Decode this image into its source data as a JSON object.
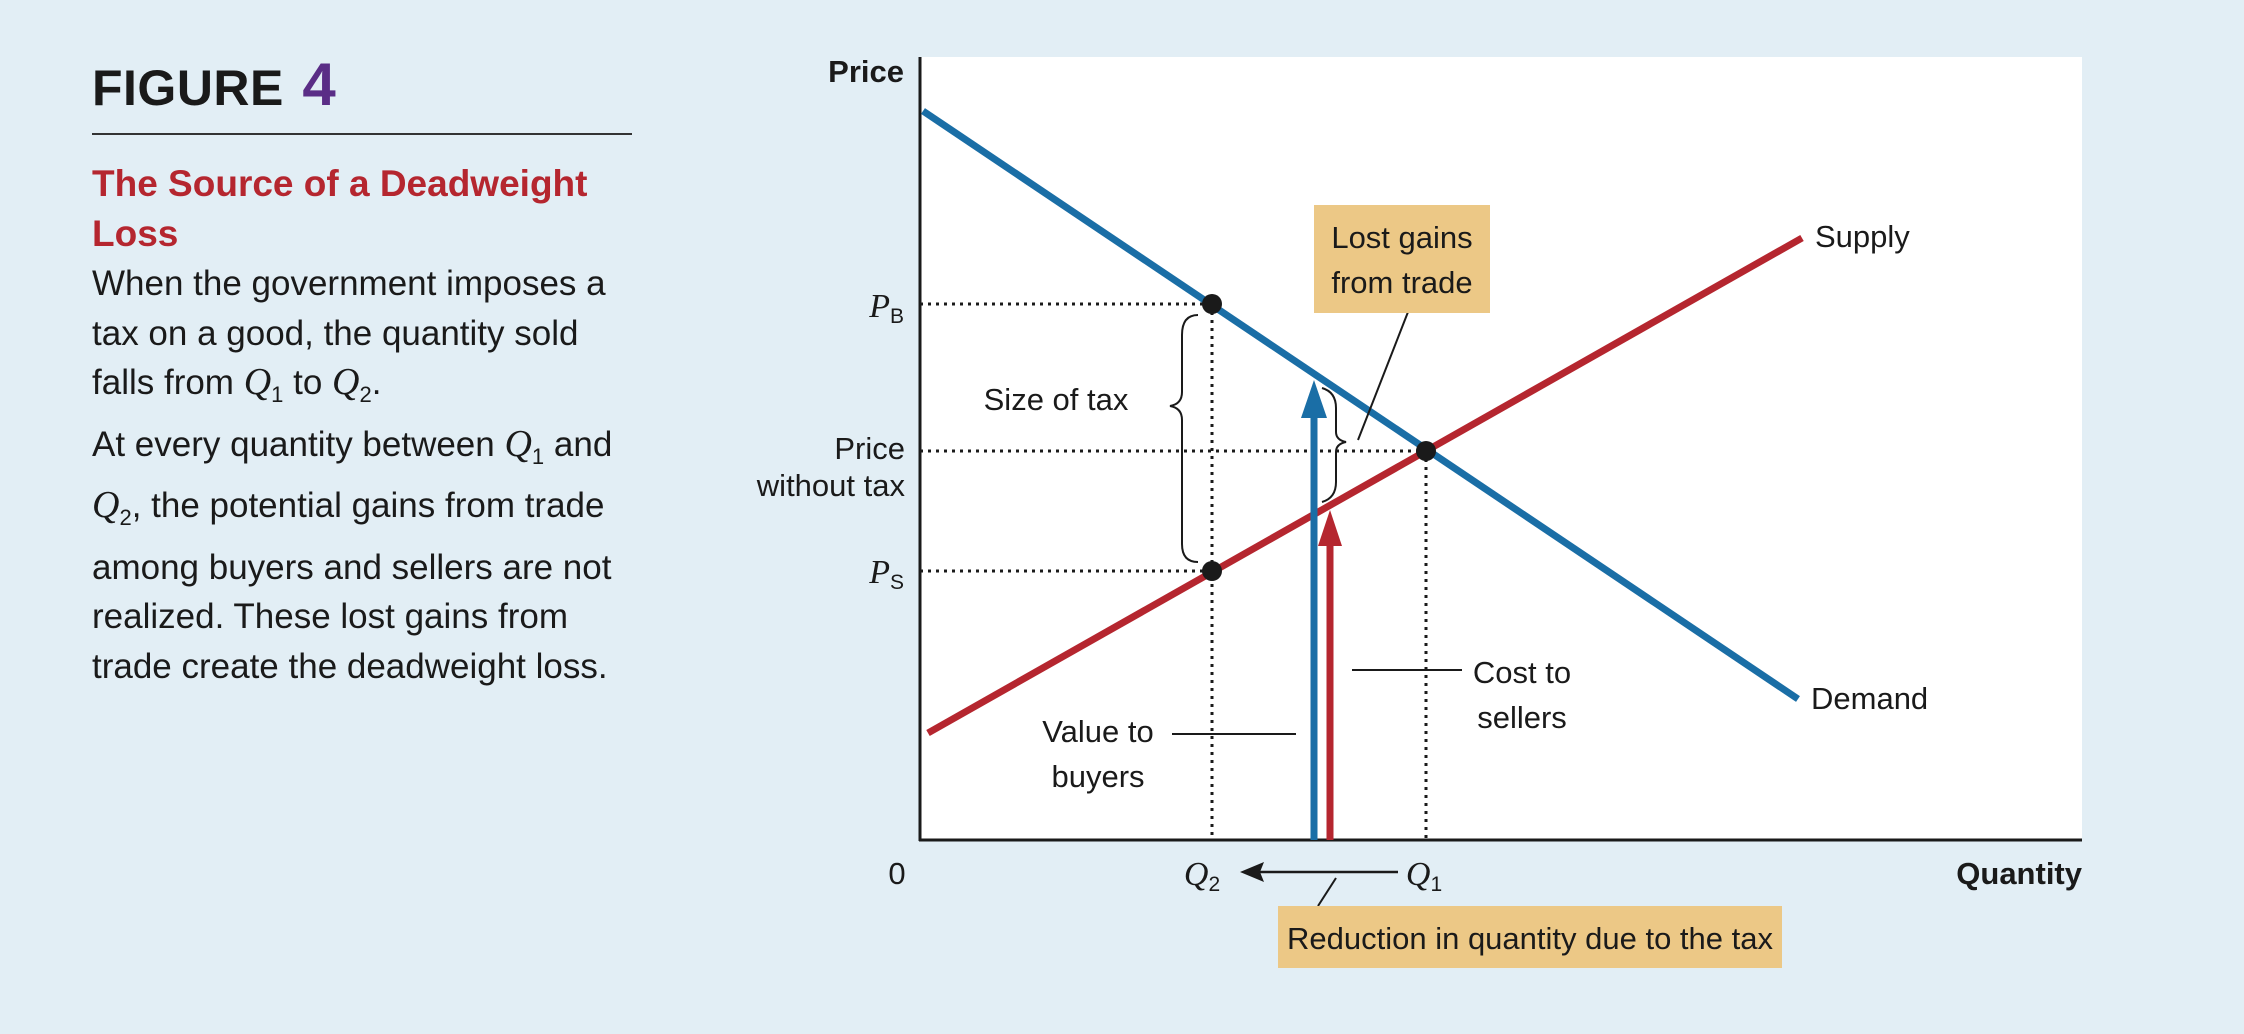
{
  "figure": {
    "label": "FIGURE",
    "number": "4",
    "heading": "The Source of a Deadweight Loss",
    "body": {
      "p1_a": "When the government imposes a tax on a good, the quantity sold falls from ",
      "q_sym": "Q",
      "q1_sub": "1",
      "to": " to ",
      "q2_sub": "2",
      "period": ".",
      "p2_a": "At every quantity between ",
      "and": " and ",
      "p2_b": ", the potential gains from trade among buyers and sellers are not realized. These lost gains from trade create the deadweight loss."
    }
  },
  "chart_data": {
    "type": "diagram",
    "ylabel": "Price",
    "xlabel": "Quantity",
    "origin_label": "0",
    "curves": [
      {
        "name": "Supply",
        "color": "#b5262f"
      },
      {
        "name": "Demand",
        "color": "#1a6ea6"
      }
    ],
    "y_labels": {
      "pb": "P",
      "pb_sub": "B",
      "ps": "P",
      "ps_sub": "S",
      "price_without_tax_1": "Price",
      "price_without_tax_2": "without tax"
    },
    "x_labels": {
      "q2": "Q",
      "q2_sub": "2",
      "q1": "Q",
      "q1_sub": "1"
    },
    "annotations": {
      "size_of_tax": "Size of tax",
      "lost_gains_1": "Lost gains",
      "lost_gains_2": "from trade",
      "value_to_buyers_1": "Value to",
      "value_to_buyers_2": "buyers",
      "cost_to_sellers_1": "Cost to",
      "cost_to_sellers_2": "sellers",
      "reduction": "Reduction in quantity due to the tax"
    },
    "colors": {
      "box_fill": "#ecc886",
      "plot_bg": "#ffffff"
    }
  }
}
